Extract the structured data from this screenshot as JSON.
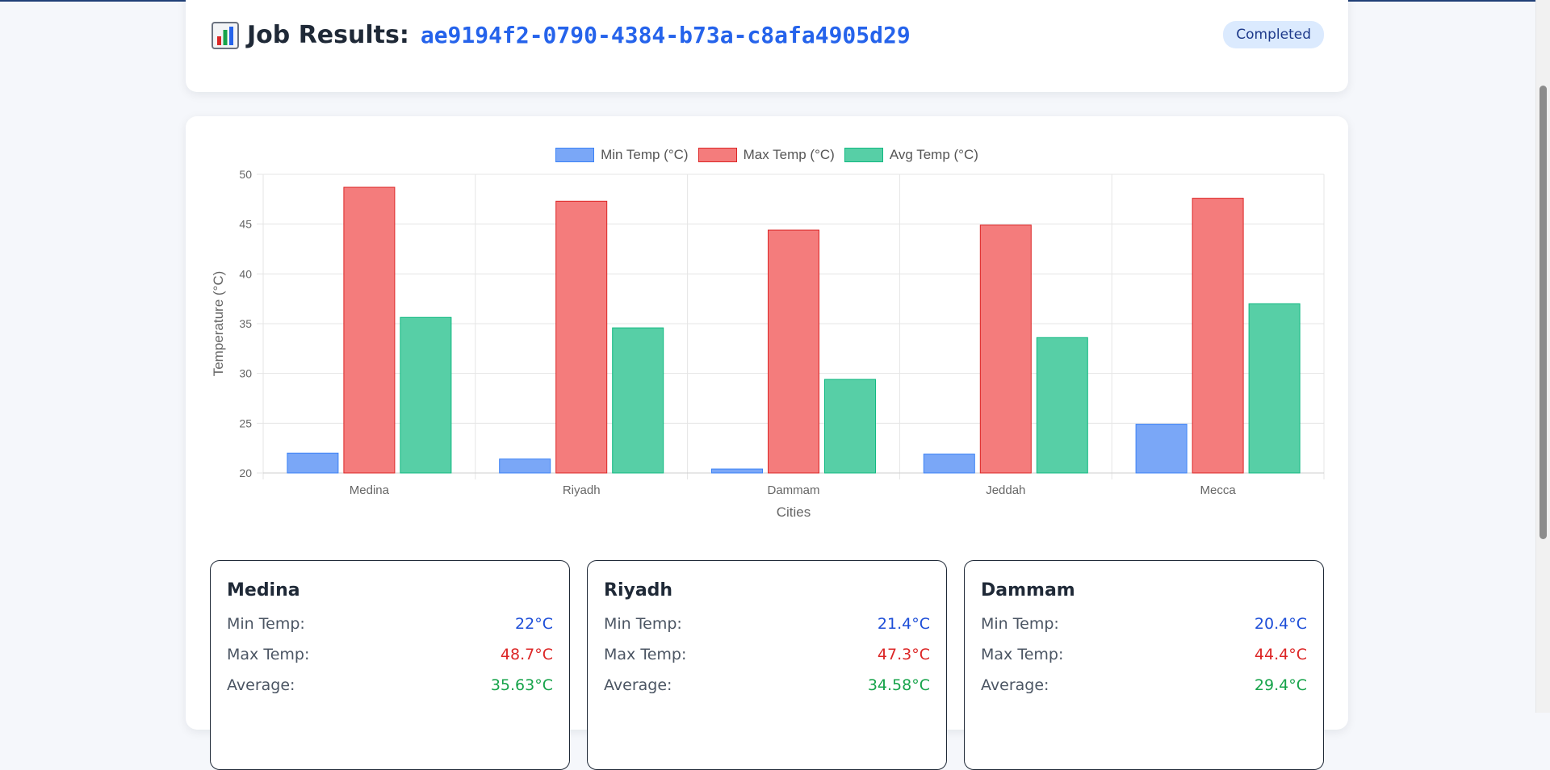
{
  "header": {
    "title": "Job Results:",
    "job_id": "ae9194f2-0790-4384-b73a-c8afa4905d29",
    "status": "Completed"
  },
  "colors": {
    "min": "#7aa7f7",
    "max": "#f47c7c",
    "avg": "#57cfa6",
    "accent": "#2563eb"
  },
  "chart_data": {
    "type": "bar",
    "categories": [
      "Medina",
      "Riyadh",
      "Dammam",
      "Jeddah",
      "Mecca"
    ],
    "series": [
      {
        "name": "Min Temp (°C)",
        "values": [
          22,
          21.4,
          20.4,
          21.9,
          24.9
        ]
      },
      {
        "name": "Max Temp (°C)",
        "values": [
          48.7,
          47.3,
          44.4,
          44.9,
          47.6
        ]
      },
      {
        "name": "Avg Temp (°C)",
        "values": [
          35.63,
          34.58,
          29.4,
          33.6,
          37.0
        ]
      }
    ],
    "xlabel": "Cities",
    "ylabel": "Temperature (°C)",
    "ylim": [
      20,
      50
    ],
    "yticks": [
      20,
      25,
      30,
      35,
      40,
      45,
      50
    ],
    "grid": true,
    "legend": "top-center"
  },
  "stats": {
    "labels": {
      "min": "Min Temp:",
      "max": "Max Temp:",
      "avg": "Average:"
    },
    "cards": [
      {
        "city": "Medina",
        "min": "22°C",
        "max": "48.7°C",
        "avg": "35.63°C"
      },
      {
        "city": "Riyadh",
        "min": "21.4°C",
        "max": "47.3°C",
        "avg": "34.58°C"
      },
      {
        "city": "Dammam",
        "min": "20.4°C",
        "max": "44.4°C",
        "avg": "29.4°C"
      }
    ]
  }
}
